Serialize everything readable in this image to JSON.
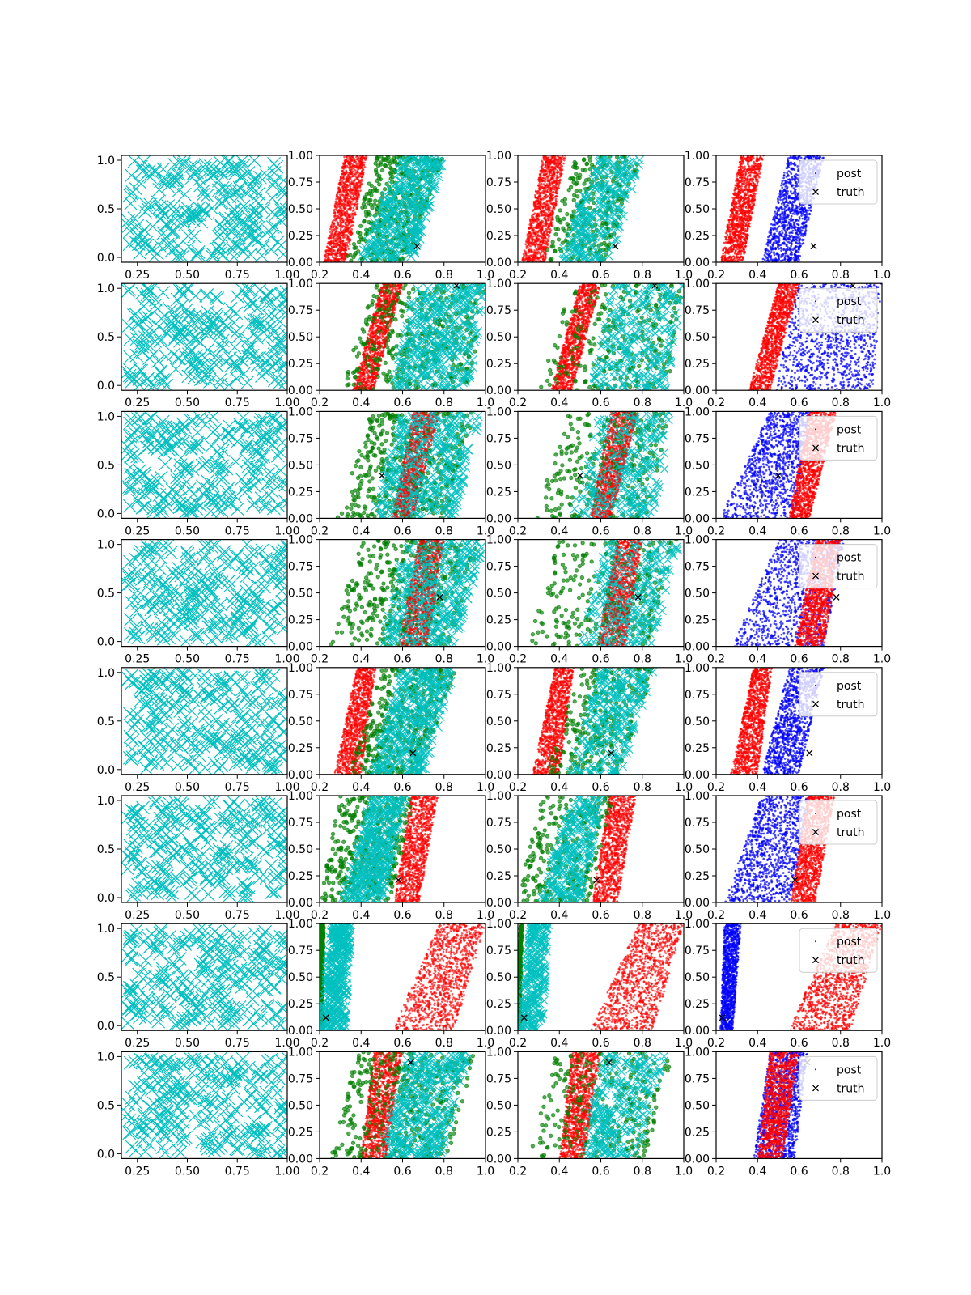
{
  "chart_data": {
    "type": "scatter",
    "layout": {
      "rows": 8,
      "cols": 4
    },
    "panel_columns": [
      {
        "kind": "prior_samples",
        "marker": "x",
        "color": "#00bfbf",
        "xlim": [
          0.17,
          1.0
        ],
        "ylim": [
          -0.05,
          1.05
        ],
        "xticks": [
          "0.25",
          "0.50",
          "0.75",
          "1.00"
        ],
        "yticks": [
          "0.0",
          "0.5",
          "1.0"
        ]
      },
      {
        "kind": "overlay_samples",
        "xlim": [
          0.2,
          1.0
        ],
        "ylim": [
          0.0,
          1.0
        ],
        "xticks": [
          "0.2",
          "0.4",
          "0.6",
          "0.8",
          "1.0"
        ],
        "yticks": [
          "0.00",
          "0.25",
          "0.50",
          "0.75",
          "1.00"
        ]
      },
      {
        "kind": "overlay_samples",
        "xlim": [
          0.2,
          1.0
        ],
        "ylim": [
          0.0,
          1.0
        ],
        "xticks": [
          "0.2",
          "0.4",
          "0.6",
          "0.8",
          "1.0"
        ],
        "yticks": [
          "0.00",
          "0.25",
          "0.50",
          "0.75",
          "1.00"
        ]
      },
      {
        "kind": "posterior",
        "xlim": [
          0.2,
          1.0
        ],
        "ylim": [
          0.0,
          1.0
        ],
        "xticks": [
          "0.2",
          "0.4",
          "0.6",
          "0.8",
          "1.0"
        ],
        "yticks": [
          "0.00",
          "0.25",
          "0.50",
          "0.75",
          "1.00"
        ]
      }
    ],
    "legend": {
      "placement": "upper-right",
      "entries": [
        "post",
        "truth"
      ]
    },
    "colors": {
      "red": "#ff0000",
      "green": "#008000",
      "cyan": "#00bfbf",
      "blue": "#0000ff",
      "truth": "#000000"
    },
    "rows": [
      {
        "truth": [
          0.67,
          0.15
        ],
        "red_band": {
          "x_lo": [
            0.22,
            0.32
          ],
          "x_hi": [
            0.33,
            0.43
          ]
        },
        "blue_band": {
          "x_lo": [
            0.42,
            0.55
          ],
          "x_hi": [
            0.6,
            0.72
          ]
        },
        "green_band": {
          "x_lo": [
            0.32,
            0.48
          ],
          "x_hi": [
            0.62,
            0.8
          ]
        },
        "cyan_band": {
          "x_lo": [
            0.38,
            0.6
          ],
          "x_hi": [
            0.65,
            0.8
          ]
        }
      },
      {
        "truth": [
          0.86,
          0.98
        ],
        "red_band": {
          "x_lo": [
            0.36,
            0.5
          ],
          "x_hi": [
            0.46,
            0.6
          ]
        },
        "blue_band": {
          "x_lo": [
            0.48,
            0.6
          ],
          "x_hi": [
            0.96,
            1.0
          ]
        },
        "green_band": {
          "x_lo": [
            0.3,
            0.46
          ],
          "x_hi": [
            0.92,
            1.0
          ]
        },
        "cyan_band": {
          "x_lo": [
            0.55,
            0.66
          ],
          "x_hi": [
            0.92,
            1.0
          ]
        }
      },
      {
        "truth": [
          0.5,
          0.4
        ],
        "red_band": {
          "x_lo": [
            0.55,
            0.65
          ],
          "x_hi": [
            0.65,
            0.78
          ]
        },
        "blue_band": {
          "x_lo": [
            0.22,
            0.46
          ],
          "x_hi": [
            0.58,
            0.66
          ]
        },
        "green_band": {
          "x_lo": [
            0.28,
            0.45
          ],
          "x_hi": [
            0.82,
            0.95
          ]
        },
        "cyan_band": {
          "x_lo": [
            0.45,
            0.6
          ],
          "x_hi": [
            0.85,
            0.98
          ]
        }
      },
      {
        "truth": [
          0.78,
          0.46
        ],
        "red_band": {
          "x_lo": [
            0.58,
            0.68
          ],
          "x_hi": [
            0.72,
            0.8
          ]
        },
        "blue_band": {
          "x_lo": [
            0.28,
            0.5
          ],
          "x_hi": [
            0.72,
            0.82
          ]
        },
        "green_band": {
          "x_lo": [
            0.24,
            0.4
          ],
          "x_hi": [
            0.84,
            0.97
          ]
        },
        "cyan_band": {
          "x_lo": [
            0.5,
            0.62
          ],
          "x_hi": [
            0.85,
            1.0
          ]
        }
      },
      {
        "truth": [
          0.65,
          0.2
        ],
        "red_band": {
          "x_lo": [
            0.27,
            0.38
          ],
          "x_hi": [
            0.4,
            0.47
          ]
        },
        "blue_band": {
          "x_lo": [
            0.42,
            0.55
          ],
          "x_hi": [
            0.6,
            0.72
          ]
        },
        "green_band": {
          "x_lo": [
            0.34,
            0.5
          ],
          "x_hi": [
            0.68,
            0.86
          ]
        },
        "cyan_band": {
          "x_lo": [
            0.44,
            0.6
          ],
          "x_hi": [
            0.7,
            0.86
          ]
        }
      },
      {
        "truth": [
          0.58,
          0.21
        ],
        "red_band": {
          "x_lo": [
            0.56,
            0.64
          ],
          "x_hi": [
            0.68,
            0.77
          ]
        },
        "blue_band": {
          "x_lo": [
            0.24,
            0.42
          ],
          "x_hi": [
            0.56,
            0.66
          ]
        },
        "green_band": {
          "x_lo": [
            0.2,
            0.3
          ],
          "x_hi": [
            0.54,
            0.66
          ]
        },
        "cyan_band": {
          "x_lo": [
            0.3,
            0.46
          ],
          "x_hi": [
            0.5,
            0.62
          ]
        }
      },
      {
        "truth": [
          0.23,
          0.12
        ],
        "red_band": {
          "x_lo": [
            0.55,
            0.78
          ],
          "x_hi": [
            0.85,
            1.0
          ]
        },
        "blue_band": {
          "x_lo": [
            0.22,
            0.24
          ],
          "x_hi": [
            0.28,
            0.32
          ]
        },
        "green_band": {
          "x_lo": [
            0.2,
            0.21
          ],
          "x_hi": [
            0.21,
            0.22
          ]
        },
        "cyan_band": {
          "x_lo": [
            0.2,
            0.26
          ],
          "x_hi": [
            0.32,
            0.35
          ]
        }
      },
      {
        "truth": [
          0.64,
          0.9
        ],
        "red_band": {
          "x_lo": [
            0.4,
            0.46
          ],
          "x_hi": [
            0.52,
            0.6
          ]
        },
        "blue_band": {
          "x_lo": [
            0.38,
            0.46
          ],
          "x_hi": [
            0.58,
            0.64
          ]
        },
        "green_band": {
          "x_lo": [
            0.25,
            0.38
          ],
          "x_hi": [
            0.82,
            0.95
          ]
        },
        "cyan_band": {
          "x_lo": [
            0.5,
            0.62
          ],
          "x_hi": [
            0.78,
            0.92
          ]
        }
      }
    ]
  }
}
